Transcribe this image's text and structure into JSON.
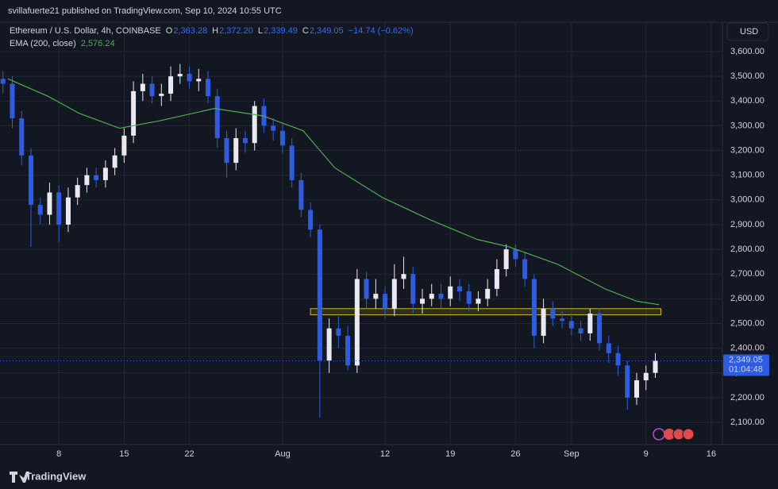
{
  "header": "svillafuerte21 published on TradingView.com, Sep 10, 2024 10:55 UTC",
  "legend": {
    "symbol": "Ethereum / U.S. Dollar, 4h, COINBASE",
    "o_label": "O",
    "o": "2,363.28",
    "h_label": "H",
    "h": "2,372.20",
    "l_label": "L",
    "l": "2,339.49",
    "c_label": "C",
    "c": "2,349.05",
    "change": "−14.74 (−0.62%)",
    "ema_value": "2,576.24"
  },
  "currency": "USD",
  "footer": "TradingView",
  "chart_data": {
    "type": "candlestick",
    "x": [
      1,
      2,
      3,
      4,
      5,
      6,
      7,
      8,
      9,
      10,
      11,
      12,
      13,
      14,
      15,
      16,
      17,
      18,
      19,
      20,
      21,
      22,
      23,
      24,
      25,
      26,
      27,
      28,
      29,
      30,
      31,
      32,
      33,
      34,
      35,
      36,
      37,
      38,
      39,
      40,
      41,
      42,
      43,
      44,
      45,
      46,
      47,
      48,
      49,
      50,
      51,
      52,
      53,
      54,
      55,
      56,
      57,
      58,
      59,
      60,
      61,
      62,
      63,
      64,
      65,
      66,
      67,
      68,
      69,
      70,
      71
    ],
    "open": [
      3490,
      3470,
      3330,
      3180,
      2980,
      2940,
      3030,
      2900,
      3010,
      3060,
      3100,
      3080,
      3130,
      3180,
      3260,
      3440,
      3470,
      3420,
      3430,
      3500,
      3510,
      3480,
      3490,
      3420,
      3250,
      3150,
      3250,
      3230,
      3380,
      3300,
      3280,
      3220,
      3080,
      2960,
      2880,
      2350,
      2480,
      2450,
      2330,
      2680,
      2600,
      2620,
      2560,
      2680,
      2700,
      2580,
      2600,
      2620,
      2600,
      2650,
      2630,
      2580,
      2600,
      2640,
      2720,
      2800,
      2760,
      2680,
      2450,
      2560,
      2520,
      2510,
      2480,
      2460,
      2540,
      2420,
      2380,
      2330,
      2200,
      2270,
      2300
    ],
    "high": [
      3520,
      3500,
      3360,
      3210,
      3010,
      3070,
      3060,
      3050,
      3090,
      3130,
      3130,
      3160,
      3210,
      3290,
      3480,
      3510,
      3500,
      3470,
      3540,
      3550,
      3540,
      3530,
      3520,
      3450,
      3280,
      3290,
      3280,
      3400,
      3410,
      3330,
      3310,
      3250,
      3110,
      2990,
      2900,
      2520,
      2530,
      2490,
      2720,
      2710,
      2680,
      2650,
      2740,
      2770,
      2730,
      2640,
      2660,
      2660,
      2690,
      2680,
      2660,
      2630,
      2680,
      2760,
      2820,
      2820,
      2790,
      2700,
      2600,
      2590,
      2550,
      2540,
      2510,
      2560,
      2560,
      2450,
      2410,
      2350,
      2300,
      2330,
      2380
    ],
    "low": [
      3430,
      3290,
      3140,
      2810,
      2900,
      2900,
      2830,
      2870,
      2980,
      3030,
      3050,
      3050,
      3100,
      3150,
      3230,
      3400,
      3390,
      3380,
      3400,
      3470,
      3450,
      3440,
      3390,
      3210,
      3090,
      3120,
      3190,
      3200,
      3270,
      3240,
      3190,
      3050,
      2930,
      2850,
      2120,
      2300,
      2400,
      2310,
      2300,
      2560,
      2560,
      2520,
      2530,
      2640,
      2540,
      2540,
      2570,
      2560,
      2570,
      2590,
      2550,
      2550,
      2570,
      2610,
      2690,
      2730,
      2650,
      2400,
      2420,
      2490,
      2480,
      2450,
      2430,
      2430,
      2390,
      2340,
      2290,
      2150,
      2170,
      2230,
      2280
    ],
    "close": [
      3470,
      3330,
      3180,
      2980,
      2940,
      3030,
      2900,
      3010,
      3060,
      3100,
      3080,
      3130,
      3180,
      3260,
      3440,
      3470,
      3420,
      3430,
      3500,
      3510,
      3480,
      3490,
      3420,
      3250,
      3150,
      3250,
      3230,
      3380,
      3300,
      3280,
      3220,
      3080,
      2960,
      2880,
      2350,
      2480,
      2450,
      2330,
      2680,
      2600,
      2620,
      2560,
      2680,
      2700,
      2580,
      2600,
      2620,
      2600,
      2650,
      2630,
      2580,
      2600,
      2640,
      2720,
      2800,
      2760,
      2680,
      2450,
      2560,
      2520,
      2510,
      2480,
      2460,
      2540,
      2420,
      2380,
      2330,
      2200,
      2270,
      2300,
      2349.05
    ],
    "up_color": "#e8eaf0",
    "down_color": "#2f5be0",
    "series": [
      {
        "name": "EMA (200, close)",
        "color": "#4caf50",
        "x": [
          1.53,
          5.8,
          9.2,
          13.5,
          17.8,
          23.7,
          28.9,
          33.2,
          36.6,
          41.7,
          46.8,
          51.9,
          55.3,
          60.5,
          65.6,
          69.0,
          71.4
        ],
        "values": [
          3490,
          3420,
          3350,
          3290,
          3320,
          3370,
          3340,
          3280,
          3130,
          3010,
          2920,
          2840,
          2810,
          2740,
          2640,
          2590,
          2576
        ]
      }
    ],
    "zone": {
      "x": [
        34,
        71.6
      ],
      "y": [
        2535,
        2560
      ],
      "color": "#c9b91e"
    },
    "last_price": {
      "value": 2349.05,
      "label": "2,349.05"
    },
    "countdown": "01:04:48",
    "xlim": [
      0.68,
      78.2
    ],
    "ylim": [
      2010,
      3719
    ],
    "xticks": [
      {
        "value": 7,
        "label": "8"
      },
      {
        "value": 14,
        "label": "15"
      },
      {
        "value": 21,
        "label": "22"
      },
      {
        "value": 31,
        "label": "Aug"
      },
      {
        "value": 42,
        "label": "12"
      },
      {
        "value": 49,
        "label": "19"
      },
      {
        "value": 56,
        "label": "26"
      },
      {
        "value": 62,
        "label": "Sep"
      },
      {
        "value": 70,
        "label": "9"
      },
      {
        "value": 77,
        "label": "16"
      }
    ],
    "yticks": [
      {
        "value": 2100,
        "label": "2,100.00"
      },
      {
        "value": 2200,
        "label": "2,200.00"
      },
      {
        "value": 2300,
        "label": "2,300.00"
      },
      {
        "value": 2400,
        "label": "2,400.00"
      },
      {
        "value": 2500,
        "label": "2,500.00"
      },
      {
        "value": 2600,
        "label": "2,600.00"
      },
      {
        "value": 2700,
        "label": "2,700.00"
      },
      {
        "value": 2800,
        "label": "2,800.00"
      },
      {
        "value": 2900,
        "label": "2,900.00"
      },
      {
        "value": 3000,
        "label": "3,000.00"
      },
      {
        "value": 3100,
        "label": "3,100.00"
      },
      {
        "value": 3200,
        "label": "3,200.00"
      },
      {
        "value": 3300,
        "label": "3,300.00"
      },
      {
        "value": 3400,
        "label": "3,400.00"
      },
      {
        "value": 3500,
        "label": "3,500.00"
      },
      {
        "value": 3600,
        "label": "3,600.00"
      }
    ],
    "grid": true
  }
}
